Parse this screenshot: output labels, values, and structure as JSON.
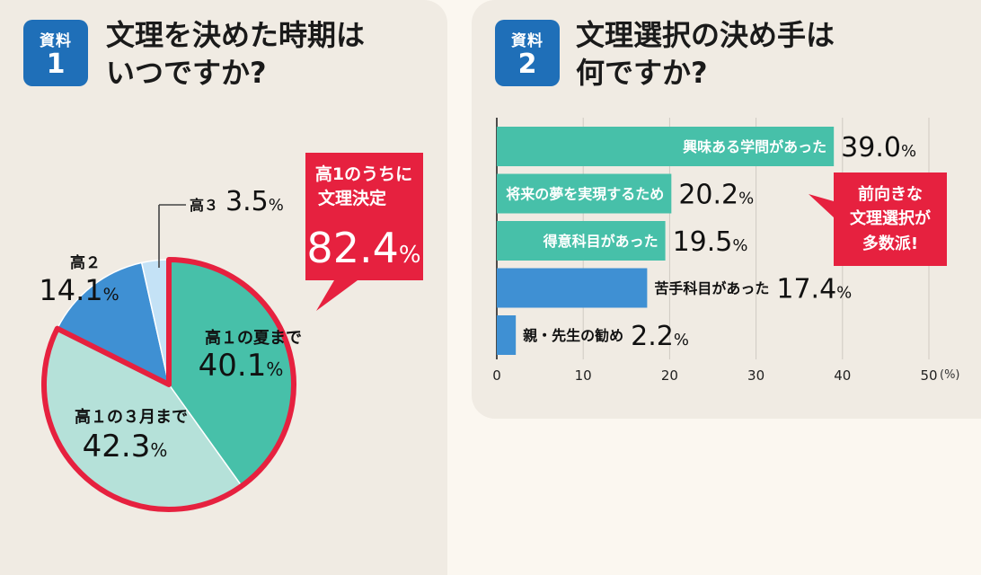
{
  "panel1": {
    "badge_label": "資料",
    "badge_number": "1",
    "title_lines": [
      "文理を決めた時期は",
      "いつですか?"
    ],
    "callout": {
      "lines": [
        "高1のうちに",
        "文理決定"
      ],
      "value": "82.4",
      "unit": "%"
    }
  },
  "panel2": {
    "badge_label": "資料",
    "badge_number": "2",
    "title_lines": [
      "文理選択の決め手は",
      "何ですか?"
    ],
    "callout_lines": [
      "前向きな",
      "文理選択が",
      "多数派!"
    ]
  },
  "colors": {
    "teal": "#47c0a9",
    "blue": "#3f90d3",
    "light_teal": "#b5e1d9",
    "light_blue": "#c4e2f6",
    "red": "#e6213f",
    "badge": "#1f6fb8"
  },
  "chart_data": [
    {
      "type": "pie",
      "slices": [
        {
          "label": "高１の夏まで",
          "value": 40.1,
          "value_text": "40.1",
          "unit": "%"
        },
        {
          "label": "高１の３月まで",
          "value": 42.3,
          "value_text": "42.3",
          "unit": "%"
        },
        {
          "label": "高２",
          "value": 14.1,
          "value_text": "14.1",
          "unit": "%"
        },
        {
          "label": "高３",
          "value": 3.5,
          "value_text": "3.5",
          "unit": "%"
        }
      ]
    },
    {
      "type": "bar",
      "orientation": "horizontal",
      "categories": [
        "興味ある学問があった",
        "将来の夢を実現するため",
        "得意科目があった",
        "苦手科目があった",
        "親・先生の勧め"
      ],
      "values": [
        39.0,
        20.2,
        19.5,
        17.4,
        2.2
      ],
      "value_texts": [
        "39.0",
        "20.2",
        "19.5",
        "17.4",
        "2.2"
      ],
      "value_unit": "%",
      "xlim": [
        0,
        50
      ],
      "xticks": [
        "0",
        "10",
        "20",
        "30",
        "40",
        "50"
      ],
      "xunit": "(%)",
      "grid": true
    }
  ]
}
